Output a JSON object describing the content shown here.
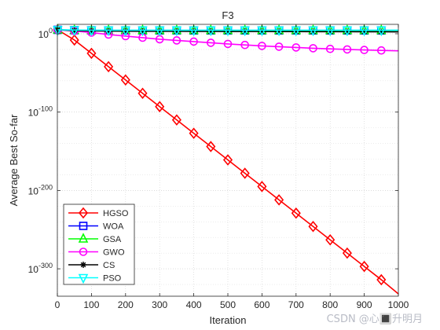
{
  "watermark": "CSDN @心🔳升明月",
  "chart_data": {
    "type": "line",
    "title": "F3",
    "xlabel": "Iteration",
    "ylabel": "Average Best So-far",
    "xlim": [
      0,
      1000
    ],
    "ylim_exp": [
      -335,
      12
    ],
    "y_scale": "log",
    "grid": true,
    "legend_position": "bottom-left",
    "x_ticks": [
      "0",
      "100",
      "200",
      "300",
      "400",
      "500",
      "600",
      "700",
      "800",
      "900",
      "1000"
    ],
    "y_ticks": [
      {
        "exp": 0,
        "mantissa": "10",
        "sup": "0"
      },
      {
        "exp": -100,
        "mantissa": "10",
        "sup": "-100"
      },
      {
        "exp": -200,
        "mantissa": "10",
        "sup": "-200"
      },
      {
        "exp": -300,
        "mantissa": "10",
        "sup": "-300"
      }
    ],
    "x": [
      1,
      50,
      100,
      150,
      200,
      250,
      300,
      350,
      400,
      450,
      500,
      550,
      600,
      650,
      700,
      750,
      800,
      850,
      900,
      950,
      1000
    ],
    "series": [
      {
        "name": "HGSO",
        "color": "#ff0000",
        "marker": "diamond",
        "log10_values": [
          5,
          -8,
          -25,
          -42,
          -59,
          -76,
          -93,
          -110,
          -127,
          -144,
          -161,
          -178,
          -195,
          -212,
          -229,
          -246,
          -263,
          -280,
          -297,
          -314,
          -332
        ]
      },
      {
        "name": "WOA",
        "color": "#0000ff",
        "marker": "square",
        "log10_values": [
          5,
          4.5,
          4.3,
          4.2,
          4.2,
          4.2,
          4.2,
          4.2,
          4.2,
          4.2,
          4.2,
          4.2,
          4.2,
          4.2,
          4.2,
          4.2,
          4.2,
          4.2,
          4.2,
          4.2,
          4.2
        ]
      },
      {
        "name": "GSA",
        "color": "#00ff00",
        "marker": "triangle-up",
        "log10_values": [
          5,
          4.4,
          4.3,
          4.3,
          4.3,
          4.3,
          4.3,
          4.3,
          4.3,
          4.3,
          4.3,
          4.3,
          4.3,
          4.3,
          4.3,
          4.3,
          4.3,
          4.3,
          4.3,
          4.3,
          4.3
        ]
      },
      {
        "name": "GWO",
        "color": "#ff00ff",
        "marker": "circle",
        "log10_values": [
          5,
          3.5,
          1.5,
          -1,
          -3,
          -5,
          -7,
          -8.5,
          -10,
          -11.5,
          -13,
          -14.3,
          -15.5,
          -16.5,
          -17.5,
          -18.5,
          -19.3,
          -20,
          -20.7,
          -21.3,
          -21.8
        ]
      },
      {
        "name": "CS",
        "color": "#000000",
        "marker": "asterisk",
        "log10_values": [
          5,
          4.0,
          3.6,
          3.4,
          3.3,
          3.2,
          3.15,
          3.1,
          3.05,
          3.0,
          2.95,
          2.9,
          2.85,
          2.8,
          2.75,
          2.7,
          2.65,
          2.6,
          2.55,
          2.5,
          2.45
        ]
      },
      {
        "name": "PSO",
        "color": "#00ffff",
        "marker": "triangle-down",
        "log10_values": [
          5,
          4.8,
          4.6,
          4.5,
          4.5,
          4.5,
          4.5,
          4.5,
          4.5,
          4.5,
          4.5,
          4.5,
          4.5,
          4.5,
          4.5,
          4.5,
          4.5,
          4.5,
          4.5,
          4.5,
          4.5
        ]
      }
    ]
  }
}
